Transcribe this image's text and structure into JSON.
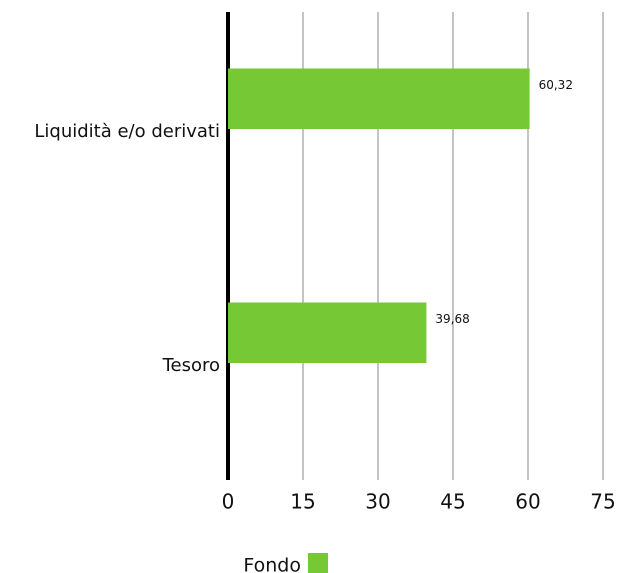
{
  "chart_data": {
    "type": "bar",
    "orientation": "horizontal",
    "categories": [
      "Liquidità e/o derivati",
      "Tesoro"
    ],
    "series": [
      {
        "name": "Fondo",
        "color": "#76c935",
        "values": [
          60.32,
          39.68
        ],
        "value_labels": [
          "60,32",
          "39,68"
        ]
      }
    ],
    "xlim": [
      0,
      75
    ],
    "xticks": [
      0,
      15,
      30,
      45,
      60,
      75
    ],
    "grid": true,
    "legend": "bottom"
  }
}
